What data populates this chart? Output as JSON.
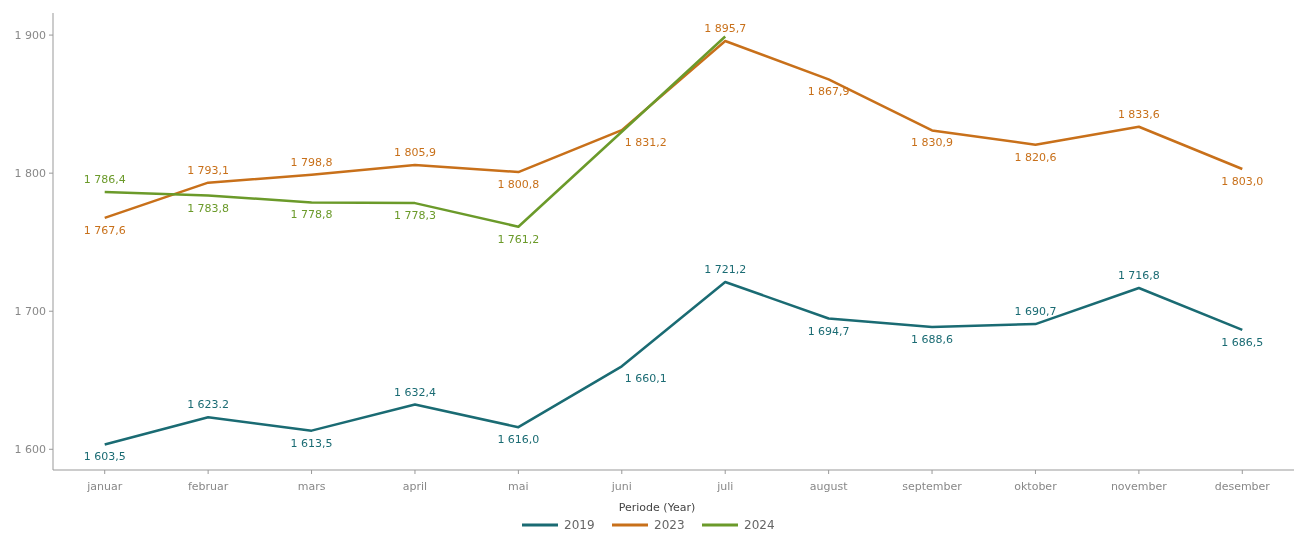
{
  "chart_data": {
    "type": "line",
    "categories": [
      "januar",
      "februar",
      "mars",
      "april",
      "mai",
      "juni",
      "juli",
      "august",
      "september",
      "oktober",
      "november",
      "desember"
    ],
    "ylim": [
      1585,
      1916
    ],
    "yticks": [
      {
        "value": 1600,
        "label": "1 600"
      },
      {
        "value": 1700,
        "label": "1 700"
      },
      {
        "value": 1800,
        "label": "1 800"
      },
      {
        "value": 1900,
        "label": "1 900"
      }
    ],
    "legend": "bottom",
    "legend_title": "Periode (Year)",
    "grid": false,
    "line_style": "solid",
    "marker": "none",
    "series": [
      {
        "name": "2019",
        "color": "#1a6b73",
        "values": [
          1603.5,
          1623.2,
          1613.5,
          1632.4,
          1616.0,
          1660.1,
          1721.2,
          1694.7,
          1688.6,
          1690.7,
          1716.8,
          1686.5
        ],
        "value_labels": [
          "1 603,5",
          "1 623.2",
          "1 613,5",
          "1 632,4",
          "1 616,0",
          "1 660,1",
          "1 721,2",
          "1 694,7",
          "1 688,6",
          "1 690,7",
          "1 716,8",
          "1 686,5"
        ]
      },
      {
        "name": "2023",
        "color": "#c8701a",
        "values": [
          1767.6,
          1793.1,
          1798.8,
          1805.9,
          1800.8,
          1831.2,
          1895.7,
          1867.9,
          1830.9,
          1820.6,
          1833.6,
          1803.0
        ],
        "value_labels": [
          "1 767,6",
          "1 793,1",
          "1 798,8",
          "1 805,9",
          "1 800,8",
          "1 831,2",
          "1 895,7",
          "1 867,9",
          "1 830,9",
          "1 820,6",
          "1 833,6",
          "1 803,0"
        ]
      },
      {
        "name": "2024",
        "color": "#6b9a2a",
        "values": [
          1786.4,
          1783.8,
          1778.8,
          1778.3,
          1761.2,
          1830,
          1899,
          null,
          null,
          null,
          null,
          null
        ],
        "value_labels": [
          "1 786,4",
          "1 783,8",
          "1 778,8",
          "1 778,3",
          "1 761,2",
          null,
          null,
          null,
          null,
          null,
          null,
          null
        ]
      }
    ]
  }
}
